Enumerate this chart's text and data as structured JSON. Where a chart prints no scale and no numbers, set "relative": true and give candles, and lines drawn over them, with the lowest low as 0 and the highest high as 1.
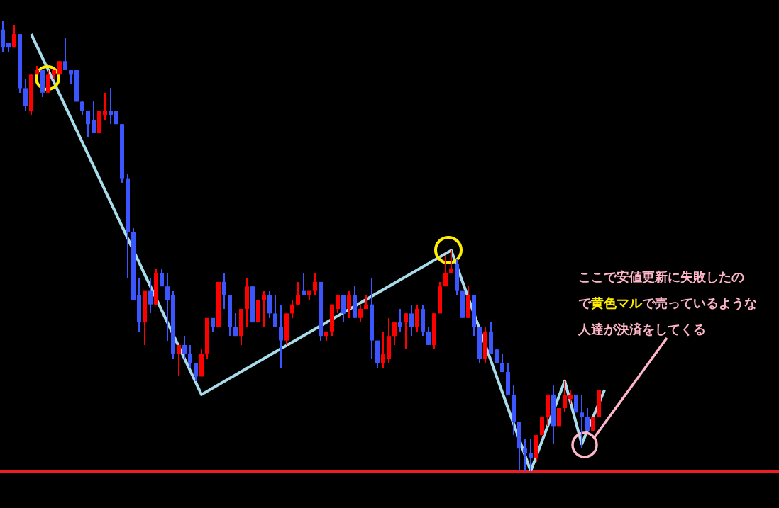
{
  "chart_data": {
    "type": "candlestick",
    "relative": true,
    "tick_labels": false,
    "grid": false,
    "legend": false,
    "categories": [
      null,
      null,
      null,
      null,
      null,
      null,
      null,
      null,
      null,
      null,
      null,
      null,
      null,
      null,
      null,
      null,
      null,
      null,
      null,
      null,
      null,
      null,
      null,
      null,
      null,
      null,
      null,
      null,
      null,
      null,
      null,
      null,
      null,
      null,
      null,
      null,
      null,
      null,
      null,
      null,
      null,
      null,
      null,
      null,
      null,
      null,
      null,
      null,
      null,
      null,
      null,
      null,
      null,
      null,
      null,
      null,
      null,
      null,
      null,
      null,
      null,
      null,
      null,
      null,
      null,
      null,
      null,
      null,
      null,
      null,
      null,
      null,
      null,
      null,
      null,
      null,
      null,
      null,
      null,
      null,
      null,
      null,
      null,
      null,
      null,
      null,
      null,
      null,
      null,
      null,
      null,
      null,
      null,
      null,
      null,
      null,
      null,
      null,
      null,
      null,
      null,
      null,
      null,
      null,
      null,
      null,
      null
    ],
    "ohlc": [
      [
        0.98,
        1.0,
        0.93,
        0.94
      ],
      [
        0.95,
        0.95,
        0.93,
        0.94
      ],
      [
        0.94,
        0.99,
        0.94,
        0.97
      ],
      [
        0.97,
        0.97,
        0.84,
        0.85
      ],
      [
        0.85,
        0.87,
        0.8,
        0.81
      ],
      [
        0.8,
        0.88,
        0.79,
        0.88
      ],
      [
        0.88,
        0.9,
        0.88,
        0.89
      ],
      [
        0.89,
        0.89,
        0.83,
        0.84
      ],
      [
        0.84,
        0.89,
        0.84,
        0.88
      ],
      [
        0.88,
        0.89,
        0.87,
        0.89
      ],
      [
        0.88,
        0.91,
        0.88,
        0.91
      ],
      [
        0.91,
        0.96,
        0.89,
        0.89
      ],
      [
        0.89,
        0.89,
        0.86,
        0.88
      ],
      [
        0.89,
        0.89,
        0.82,
        0.82
      ],
      [
        0.82,
        0.82,
        0.79,
        0.8
      ],
      [
        0.8,
        0.8,
        0.74,
        0.77
      ],
      [
        0.78,
        0.82,
        0.75,
        0.75
      ],
      [
        0.75,
        0.8,
        0.75,
        0.8
      ],
      [
        0.79,
        0.84,
        0.78,
        0.8
      ],
      [
        0.8,
        0.85,
        0.77,
        0.79
      ],
      [
        0.8,
        0.8,
        0.77,
        0.77
      ],
      [
        0.77,
        0.77,
        0.64,
        0.65
      ],
      [
        0.65,
        0.66,
        0.43,
        0.53
      ],
      [
        0.53,
        0.54,
        0.38,
        0.38
      ],
      [
        0.39,
        0.43,
        0.31,
        0.33
      ],
      [
        0.33,
        0.4,
        0.28,
        0.4
      ],
      [
        0.4,
        0.43,
        0.35,
        0.37
      ],
      [
        0.37,
        0.45,
        0.37,
        0.44
      ],
      [
        0.44,
        0.45,
        0.41,
        0.41
      ],
      [
        0.41,
        0.44,
        0.29,
        0.38
      ],
      [
        0.39,
        0.4,
        0.25,
        0.26
      ],
      [
        0.26,
        0.28,
        0.21,
        0.28
      ],
      [
        0.28,
        0.3,
        0.25,
        0.26
      ],
      [
        0.26,
        0.28,
        0.23,
        0.24
      ],
      [
        0.24,
        0.24,
        0.2,
        0.21
      ],
      [
        0.21,
        0.27,
        0.21,
        0.26
      ],
      [
        0.26,
        0.34,
        0.25,
        0.34
      ],
      [
        0.34,
        0.34,
        0.31,
        0.32
      ],
      [
        0.32,
        0.42,
        0.32,
        0.42
      ],
      [
        0.42,
        0.44,
        0.36,
        0.39
      ],
      [
        0.39,
        0.39,
        0.3,
        0.32
      ],
      [
        0.32,
        0.35,
        0.3,
        0.3
      ],
      [
        0.3,
        0.36,
        0.28,
        0.36
      ],
      [
        0.36,
        0.43,
        0.32,
        0.41
      ],
      [
        0.41,
        0.41,
        0.33,
        0.33
      ],
      [
        0.33,
        0.38,
        0.33,
        0.38
      ],
      [
        0.38,
        0.4,
        0.32,
        0.39
      ],
      [
        0.39,
        0.4,
        0.34,
        0.35
      ],
      [
        0.35,
        0.39,
        0.32,
        0.32
      ],
      [
        0.32,
        0.37,
        0.23,
        0.29
      ],
      [
        0.29,
        0.35,
        0.28,
        0.35
      ],
      [
        0.35,
        0.38,
        0.34,
        0.37
      ],
      [
        0.37,
        0.42,
        0.37,
        0.39
      ],
      [
        0.4,
        0.44,
        0.39,
        0.39
      ],
      [
        0.39,
        0.4,
        0.38,
        0.4
      ],
      [
        0.4,
        0.44,
        0.39,
        0.42
      ],
      [
        0.42,
        0.42,
        0.29,
        0.3
      ],
      [
        0.3,
        0.31,
        0.29,
        0.31
      ],
      [
        0.31,
        0.37,
        0.3,
        0.37
      ],
      [
        0.36,
        0.39,
        0.35,
        0.39
      ],
      [
        0.39,
        0.39,
        0.33,
        0.35
      ],
      [
        0.36,
        0.4,
        0.34,
        0.39
      ],
      [
        0.39,
        0.41,
        0.34,
        0.34
      ],
      [
        0.34,
        0.37,
        0.33,
        0.36
      ],
      [
        0.36,
        0.39,
        0.36,
        0.37
      ],
      [
        0.37,
        0.43,
        0.25,
        0.29
      ],
      [
        0.29,
        0.29,
        0.23,
        0.24
      ],
      [
        0.24,
        0.31,
        0.23,
        0.26
      ],
      [
        0.25,
        0.34,
        0.24,
        0.3
      ],
      [
        0.3,
        0.33,
        0.28,
        0.33
      ],
      [
        0.33,
        0.36,
        0.31,
        0.32
      ],
      [
        0.33,
        0.35,
        0.27,
        0.35
      ],
      [
        0.35,
        0.37,
        0.3,
        0.32
      ],
      [
        0.32,
        0.37,
        0.31,
        0.36
      ],
      [
        0.36,
        0.37,
        0.3,
        0.31
      ],
      [
        0.31,
        0.32,
        0.28,
        0.28
      ],
      [
        0.28,
        0.35,
        0.27,
        0.35
      ],
      [
        0.35,
        0.42,
        0.35,
        0.41
      ],
      [
        0.41,
        0.48,
        0.41,
        0.44
      ],
      [
        0.44,
        0.49,
        0.44,
        0.45
      ],
      [
        0.46,
        0.47,
        0.39,
        0.4
      ],
      [
        0.4,
        0.4,
        0.34,
        0.34
      ],
      [
        0.34,
        0.41,
        0.34,
        0.39
      ],
      [
        0.39,
        0.39,
        0.3,
        0.32
      ],
      [
        0.32,
        0.32,
        0.24,
        0.25
      ],
      [
        0.25,
        0.32,
        0.24,
        0.31
      ],
      [
        0.31,
        0.33,
        0.26,
        0.26
      ],
      [
        0.27,
        0.27,
        0.24,
        0.24
      ],
      [
        0.24,
        0.26,
        0.22,
        0.22
      ],
      [
        0.22,
        0.24,
        0.17,
        0.17
      ],
      [
        0.17,
        0.19,
        0.08,
        0.11
      ],
      [
        0.11,
        0.11,
        0,
        0.05
      ],
      [
        0.05,
        0.07,
        0,
        0.04
      ],
      [
        0.04,
        0.07,
        0,
        0.03
      ],
      [
        0.03,
        0.08,
        0.02,
        0.08
      ],
      [
        0.08,
        0.12,
        0.08,
        0.12
      ],
      [
        0.12,
        0.17,
        0.1,
        0.17
      ],
      [
        0.17,
        0.19,
        0.06,
        0.1
      ],
      [
        0.1,
        0.14,
        0.1,
        0.14
      ],
      [
        0.14,
        0.2,
        0.13,
        0.17
      ],
      [
        0.16,
        0.18,
        0.15,
        0.17
      ],
      [
        0.17,
        0.17,
        0.13,
        0.13
      ],
      [
        0.13,
        0.17,
        0.05,
        0.12
      ],
      [
        0.12,
        0.14,
        0.09,
        0.09
      ],
      [
        0.09,
        0.12,
        0.09,
        0.12
      ],
      [
        0.12,
        0.18,
        0.12,
        0.18
      ],
      null
    ],
    "colors": [
      "#3b55ff",
      "#3b55ff",
      "#ff0000",
      "#3b55ff",
      "#3b55ff",
      "#ff0000",
      "#ff0000",
      "#3b55ff",
      "#ff0000",
      "#ff0000",
      "#ff0000",
      "#3b55ff",
      "#3b55ff",
      "#3b55ff",
      "#3b55ff",
      "#3b55ff",
      "#3b55ff",
      "#ff0000",
      "#ff0000",
      "#3b55ff",
      "#3b55ff",
      "#3b55ff",
      "#3b55ff",
      "#3b55ff",
      "#3b55ff",
      "#ff0000",
      "#3b55ff",
      "#ff0000",
      "#3b55ff",
      "#3b55ff",
      "#3b55ff",
      "#ff0000",
      "#3b55ff",
      "#3b55ff",
      "#3b55ff",
      "#ff0000",
      "#ff0000",
      "#3b55ff",
      "#ff0000",
      "#3b55ff",
      "#3b55ff",
      "#3b55ff",
      "#ff0000",
      "#ff0000",
      "#3b55ff",
      "#ff0000",
      "#ff0000",
      "#3b55ff",
      "#3b55ff",
      "#3b55ff",
      "#ff0000",
      "#ff0000",
      "#ff0000",
      "#3b55ff",
      "#ff0000",
      "#ff0000",
      "#3b55ff",
      "#ff0000",
      "#ff0000",
      "#ff0000",
      "#3b55ff",
      "#ff0000",
      "#3b55ff",
      "#ff0000",
      "#ff0000",
      "#3b55ff",
      "#3b55ff",
      "#ff0000",
      "#ff0000",
      "#ff0000",
      "#3b55ff",
      "#ff0000",
      "#3b55ff",
      "#ff0000",
      "#3b55ff",
      "#3b55ff",
      "#ff0000",
      "#ff0000",
      "#ff0000",
      "#ff0000",
      "#3b55ff",
      "#3b55ff",
      "#ff0000",
      "#3b55ff",
      "#3b55ff",
      "#ff0000",
      "#3b55ff",
      "#3b55ff",
      "#3b55ff",
      "#3b55ff",
      "#3b55ff",
      "#3b55ff",
      "#3b55ff",
      "#3b55ff",
      "#ff0000",
      "#ff0000",
      "#ff0000",
      "#3b55ff",
      "#ff0000",
      "#ff0000",
      "#ff0000",
      "#3b55ff",
      "#3b55ff",
      "#3b55ff",
      "#ff0000",
      "#ff0000",
      null
    ],
    "series": [
      {
        "type": "line",
        "color": "#a8dcea",
        "values": [
          null,
          null,
          null,
          null,
          null,
          0.97,
          null,
          null,
          null,
          null,
          null,
          null,
          null,
          null,
          null,
          null,
          null,
          null,
          null,
          null,
          null,
          null,
          null,
          null,
          null,
          null,
          null,
          null,
          null,
          null,
          null,
          null,
          null,
          null,
          null,
          0.17,
          null,
          null,
          null,
          null,
          null,
          null,
          null,
          null,
          null,
          null,
          null,
          null,
          null,
          null,
          null,
          null,
          null,
          null,
          null,
          null,
          null,
          null,
          null,
          null,
          null,
          null,
          null,
          null,
          null,
          null,
          null,
          null,
          null,
          null,
          null,
          null,
          null,
          null,
          null,
          null,
          null,
          null,
          null,
          0.49,
          null,
          null,
          null,
          null,
          null,
          null,
          null,
          null,
          null,
          null,
          null,
          null,
          null,
          0,
          null,
          null,
          null,
          null,
          null,
          0.2,
          null,
          null,
          0.06,
          null,
          null,
          null,
          0.18
        ]
      }
    ],
    "ref_lines": [
      {
        "axis": "y",
        "value": 0,
        "color": "#ee1c25"
      }
    ],
    "annotations": [
      "ここで安値更新に失敗したので黄色マルで売っているような人達が決済をしてくる"
    ]
  }
}
